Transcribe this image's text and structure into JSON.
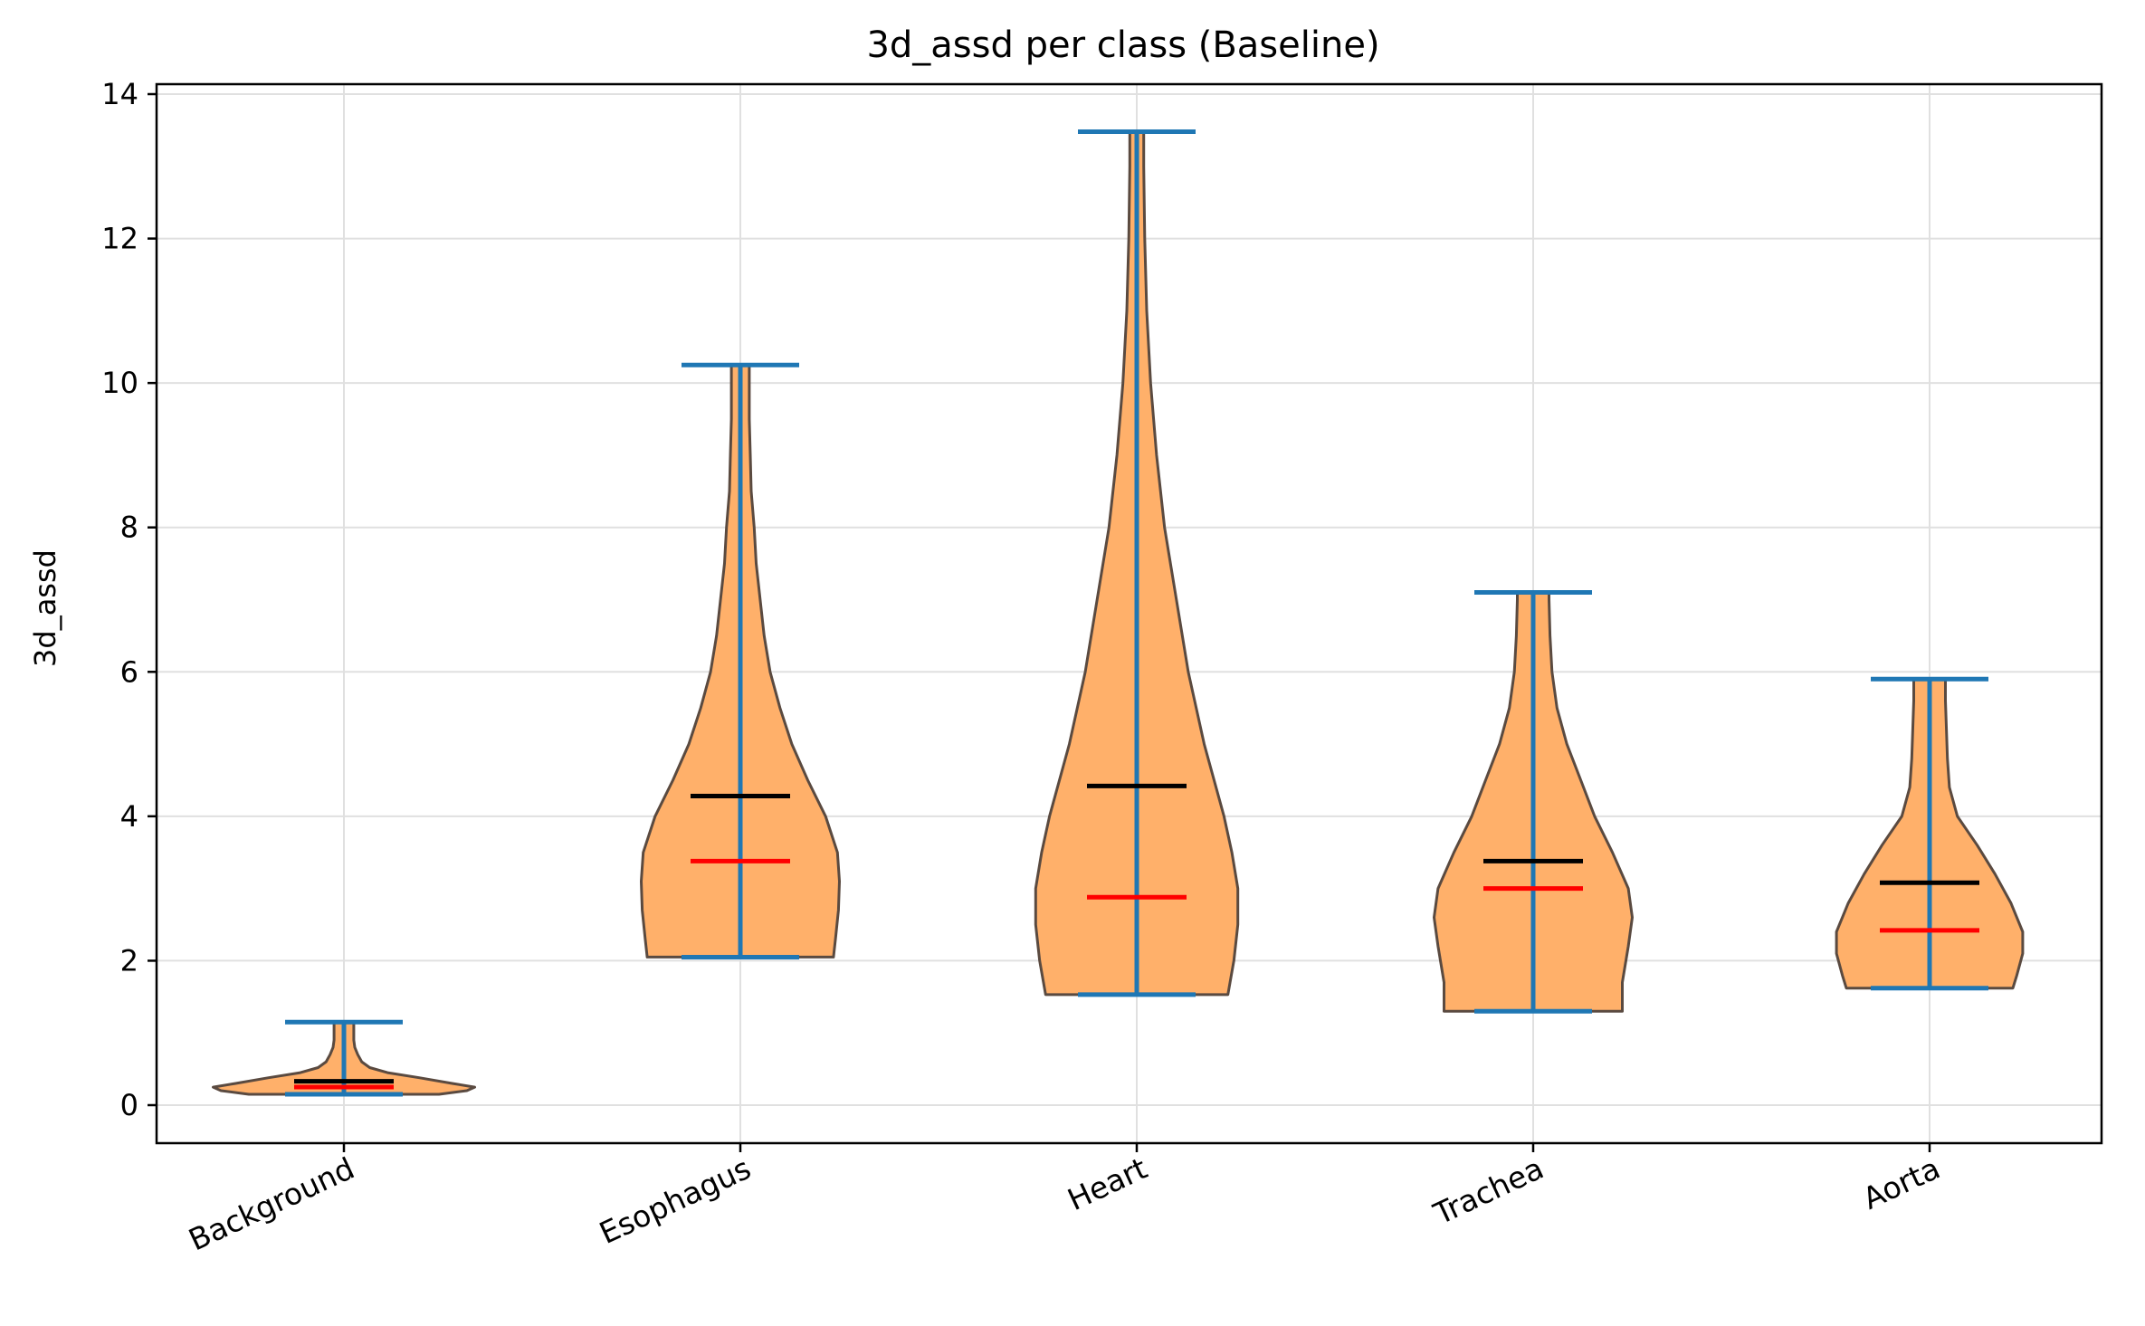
{
  "chart_data": {
    "type": "violin",
    "title": "3d_assd per class (Baseline)",
    "xlabel": "",
    "ylabel": "3d_assd",
    "ylim": [
      -0.5,
      14.2
    ],
    "yticks": [
      0,
      2,
      4,
      6,
      8,
      10,
      12,
      14
    ],
    "grid": true,
    "categories": [
      "Background",
      "Esophagus",
      "Heart",
      "Trachea",
      "Aorta"
    ],
    "colors": {
      "body": "#ffb06a",
      "edge": "#5a4a40",
      "extrema": "#1f77b4",
      "mean": "#000000",
      "median": "#ff0000",
      "grid": "#e0e0e0"
    },
    "series": [
      {
        "category": "Background",
        "min": 0.15,
        "max": 1.15,
        "mean": 0.33,
        "median": 0.25,
        "profile": [
          [
            0.15,
            0.48
          ],
          [
            0.2,
            0.62
          ],
          [
            0.25,
            0.66
          ],
          [
            0.3,
            0.55
          ],
          [
            0.38,
            0.38
          ],
          [
            0.45,
            0.22
          ],
          [
            0.52,
            0.13
          ],
          [
            0.6,
            0.09
          ],
          [
            0.7,
            0.07
          ],
          [
            0.8,
            0.055
          ],
          [
            0.9,
            0.05
          ],
          [
            1.0,
            0.05
          ],
          [
            1.1,
            0.05
          ],
          [
            1.15,
            0.05
          ]
        ]
      },
      {
        "category": "Esophagus",
        "min": 2.05,
        "max": 10.25,
        "mean": 4.28,
        "median": 3.38,
        "profile": [
          [
            2.05,
            0.47
          ],
          [
            2.3,
            0.48
          ],
          [
            2.7,
            0.495
          ],
          [
            3.1,
            0.5
          ],
          [
            3.5,
            0.49
          ],
          [
            4.0,
            0.43
          ],
          [
            4.5,
            0.34
          ],
          [
            5.0,
            0.26
          ],
          [
            5.5,
            0.2
          ],
          [
            6.0,
            0.15
          ],
          [
            6.5,
            0.12
          ],
          [
            7.0,
            0.1
          ],
          [
            7.5,
            0.08
          ],
          [
            8.0,
            0.07
          ],
          [
            8.5,
            0.055
          ],
          [
            9.0,
            0.05
          ],
          [
            9.5,
            0.045
          ],
          [
            10.0,
            0.045
          ],
          [
            10.25,
            0.045
          ]
        ]
      },
      {
        "category": "Heart",
        "min": 1.53,
        "max": 13.48,
        "mean": 4.42,
        "median": 2.88,
        "profile": [
          [
            1.53,
            0.46
          ],
          [
            2.0,
            0.49
          ],
          [
            2.5,
            0.51
          ],
          [
            3.0,
            0.51
          ],
          [
            3.5,
            0.48
          ],
          [
            4.0,
            0.44
          ],
          [
            5.0,
            0.34
          ],
          [
            6.0,
            0.26
          ],
          [
            7.0,
            0.2
          ],
          [
            8.0,
            0.14
          ],
          [
            9.0,
            0.1
          ],
          [
            10.0,
            0.07
          ],
          [
            11.0,
            0.05
          ],
          [
            12.0,
            0.04
          ],
          [
            13.0,
            0.035
          ],
          [
            13.48,
            0.035
          ]
        ]
      },
      {
        "category": "Trachea",
        "min": 1.3,
        "max": 7.1,
        "mean": 3.38,
        "median": 3.0,
        "profile": [
          [
            1.3,
            0.45
          ],
          [
            1.7,
            0.45
          ],
          [
            2.2,
            0.48
          ],
          [
            2.6,
            0.5
          ],
          [
            3.0,
            0.48
          ],
          [
            3.5,
            0.4
          ],
          [
            4.0,
            0.31
          ],
          [
            4.5,
            0.24
          ],
          [
            5.0,
            0.17
          ],
          [
            5.5,
            0.12
          ],
          [
            6.0,
            0.095
          ],
          [
            6.5,
            0.085
          ],
          [
            7.0,
            0.08
          ],
          [
            7.1,
            0.08
          ]
        ]
      },
      {
        "category": "Aorta",
        "min": 1.62,
        "max": 5.9,
        "mean": 3.08,
        "median": 2.42,
        "profile": [
          [
            1.62,
            0.42
          ],
          [
            1.8,
            0.44
          ],
          [
            2.1,
            0.47
          ],
          [
            2.4,
            0.47
          ],
          [
            2.8,
            0.41
          ],
          [
            3.2,
            0.33
          ],
          [
            3.6,
            0.24
          ],
          [
            4.0,
            0.14
          ],
          [
            4.4,
            0.1
          ],
          [
            4.8,
            0.09
          ],
          [
            5.2,
            0.085
          ],
          [
            5.6,
            0.08
          ],
          [
            5.9,
            0.08
          ]
        ]
      }
    ]
  }
}
